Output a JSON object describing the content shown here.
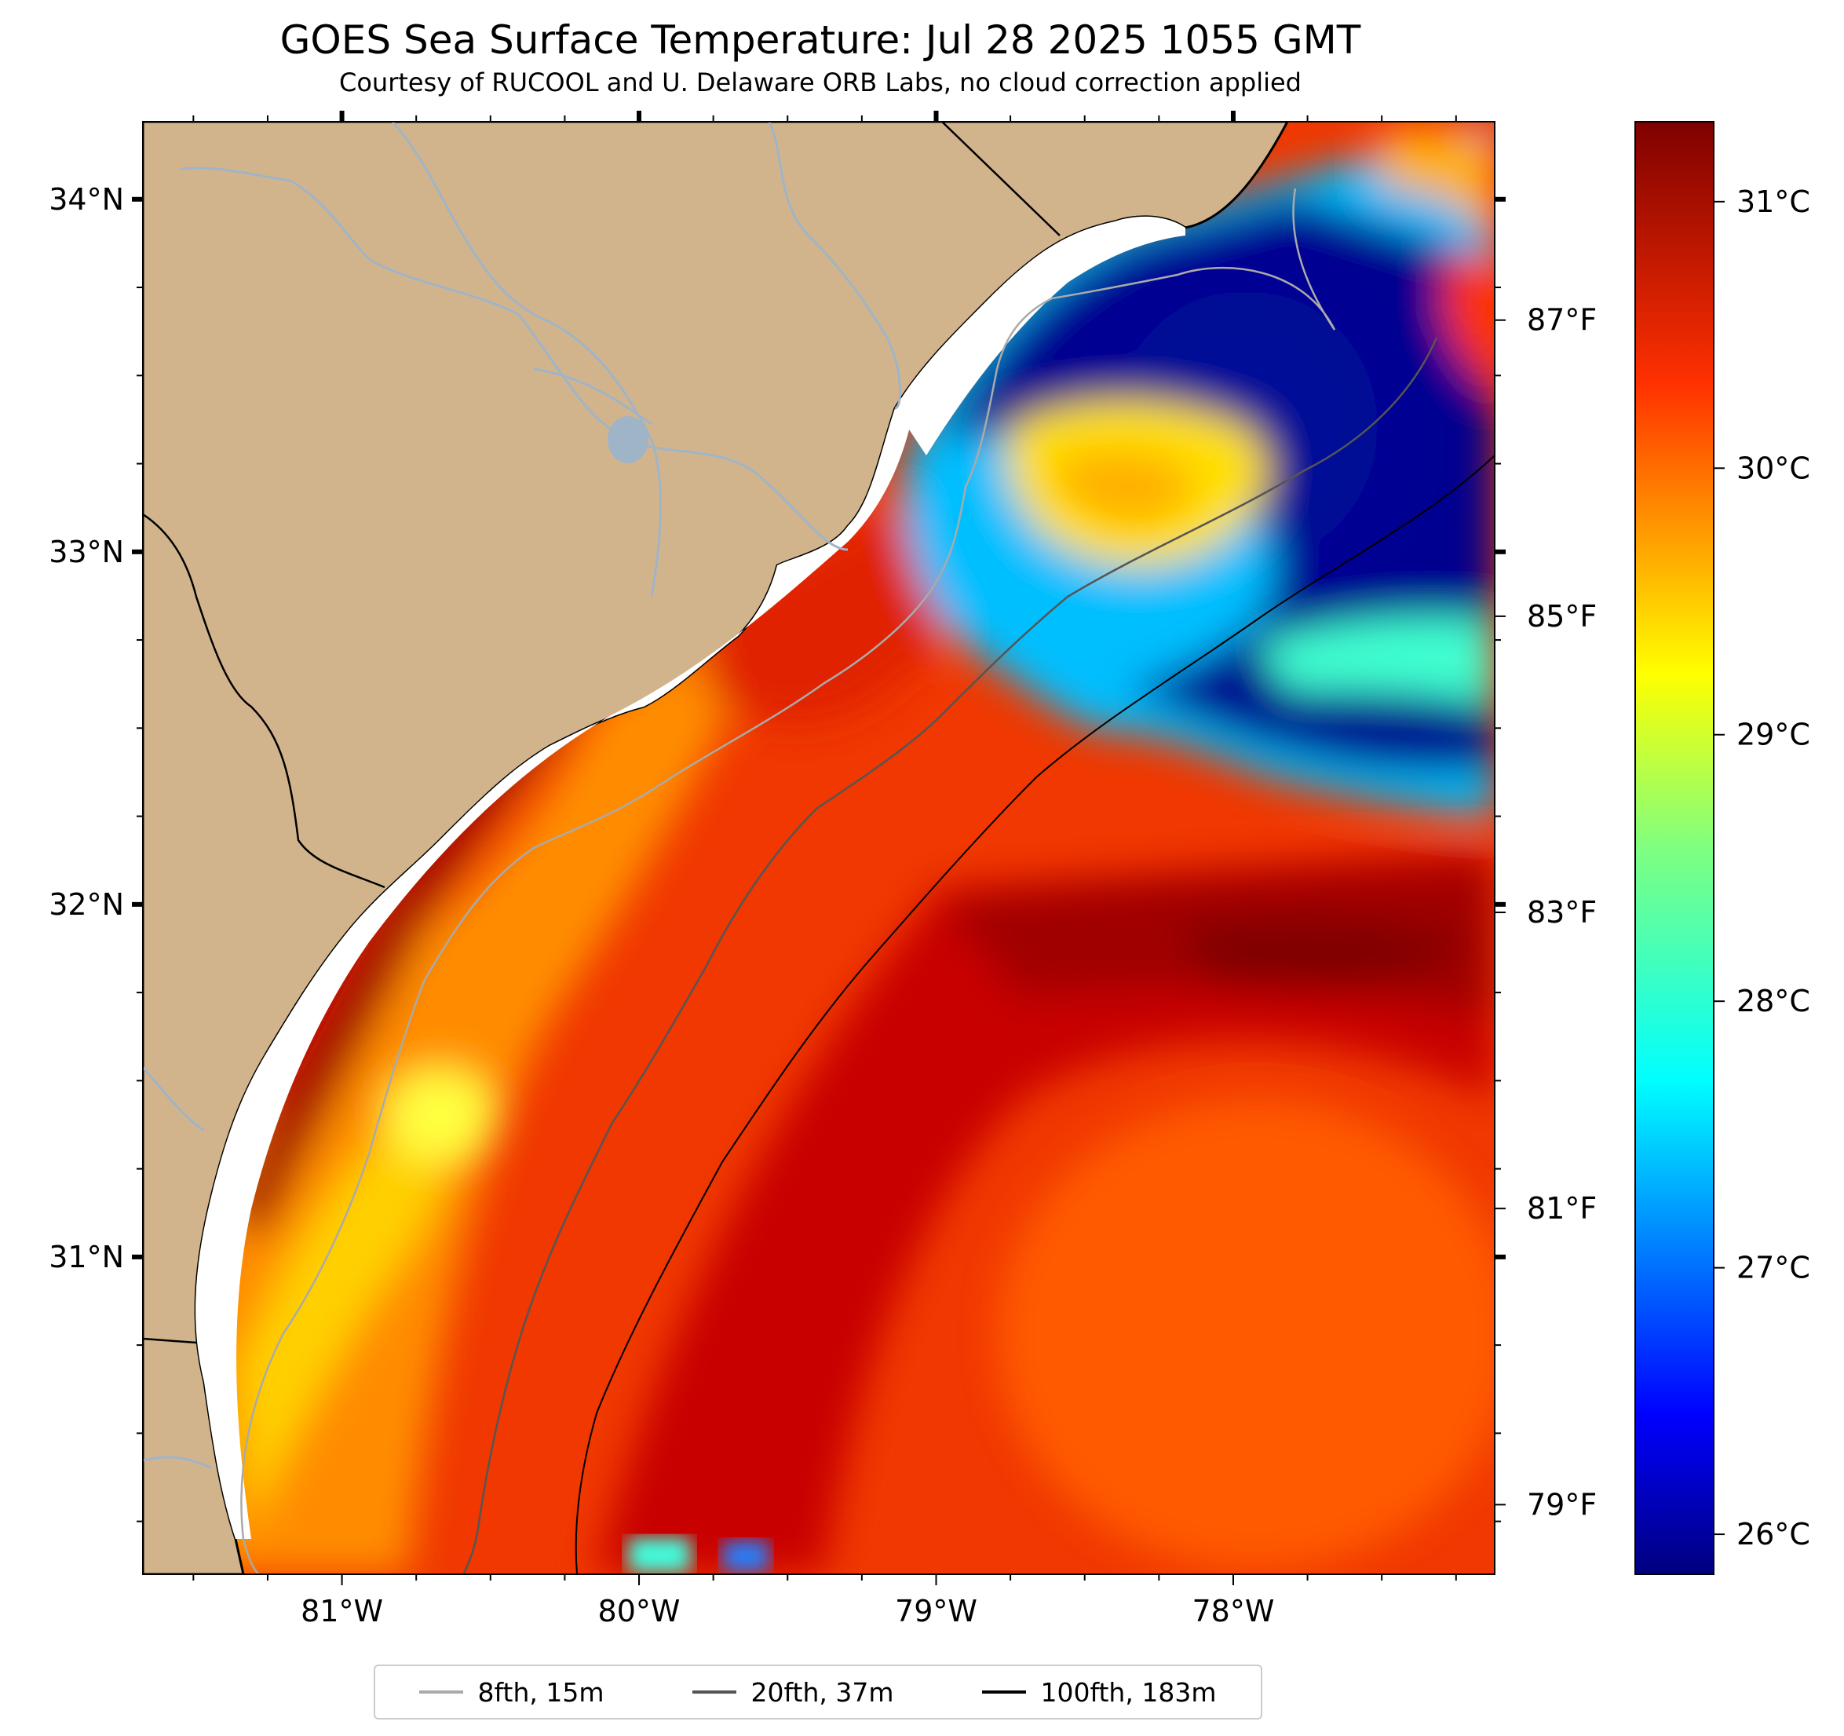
{
  "title": "GOES Sea Surface Temperature: Jul 28 2025 1055 GMT",
  "subtitle": "Courtesy of RUCOOL and U. Delaware ORB Labs, no cloud correction applied",
  "map": {
    "lon_range": [
      -81.67,
      -77.12
    ],
    "lat_range": [
      30.1,
      34.22
    ],
    "land_color": "#d2b48c",
    "lon_ticks": [
      {
        "value": -81,
        "label": "81°W"
      },
      {
        "value": -80,
        "label": "80°W"
      },
      {
        "value": -79,
        "label": "79°W"
      },
      {
        "value": -78,
        "label": "78°W"
      }
    ],
    "lat_ticks": [
      {
        "value": 34,
        "label": "34°N"
      },
      {
        "value": 33,
        "label": "33°N"
      },
      {
        "value": 32,
        "label": "32°N"
      },
      {
        "value": 31,
        "label": "31°N"
      }
    ],
    "fahrenheit_ticks": [
      "87°F",
      "85°F",
      "83°F",
      "81°F",
      "79°F"
    ]
  },
  "colorbar": {
    "colormap": "jet",
    "min_c": 25.85,
    "max_c": 31.3,
    "ticks": [
      {
        "value": 31,
        "label": "31°C"
      },
      {
        "value": 30,
        "label": "30°C"
      },
      {
        "value": 29,
        "label": "29°C"
      },
      {
        "value": 28,
        "label": "28°C"
      },
      {
        "value": 27,
        "label": "27°C"
      },
      {
        "value": 26,
        "label": "26°C"
      }
    ]
  },
  "legend": [
    {
      "label": "8fth, 15m",
      "color": "#aaaaaa"
    },
    {
      "label": "20fth, 37m",
      "color": "#555555"
    },
    {
      "label": "100fth, 183m",
      "color": "#000000"
    }
  ]
}
